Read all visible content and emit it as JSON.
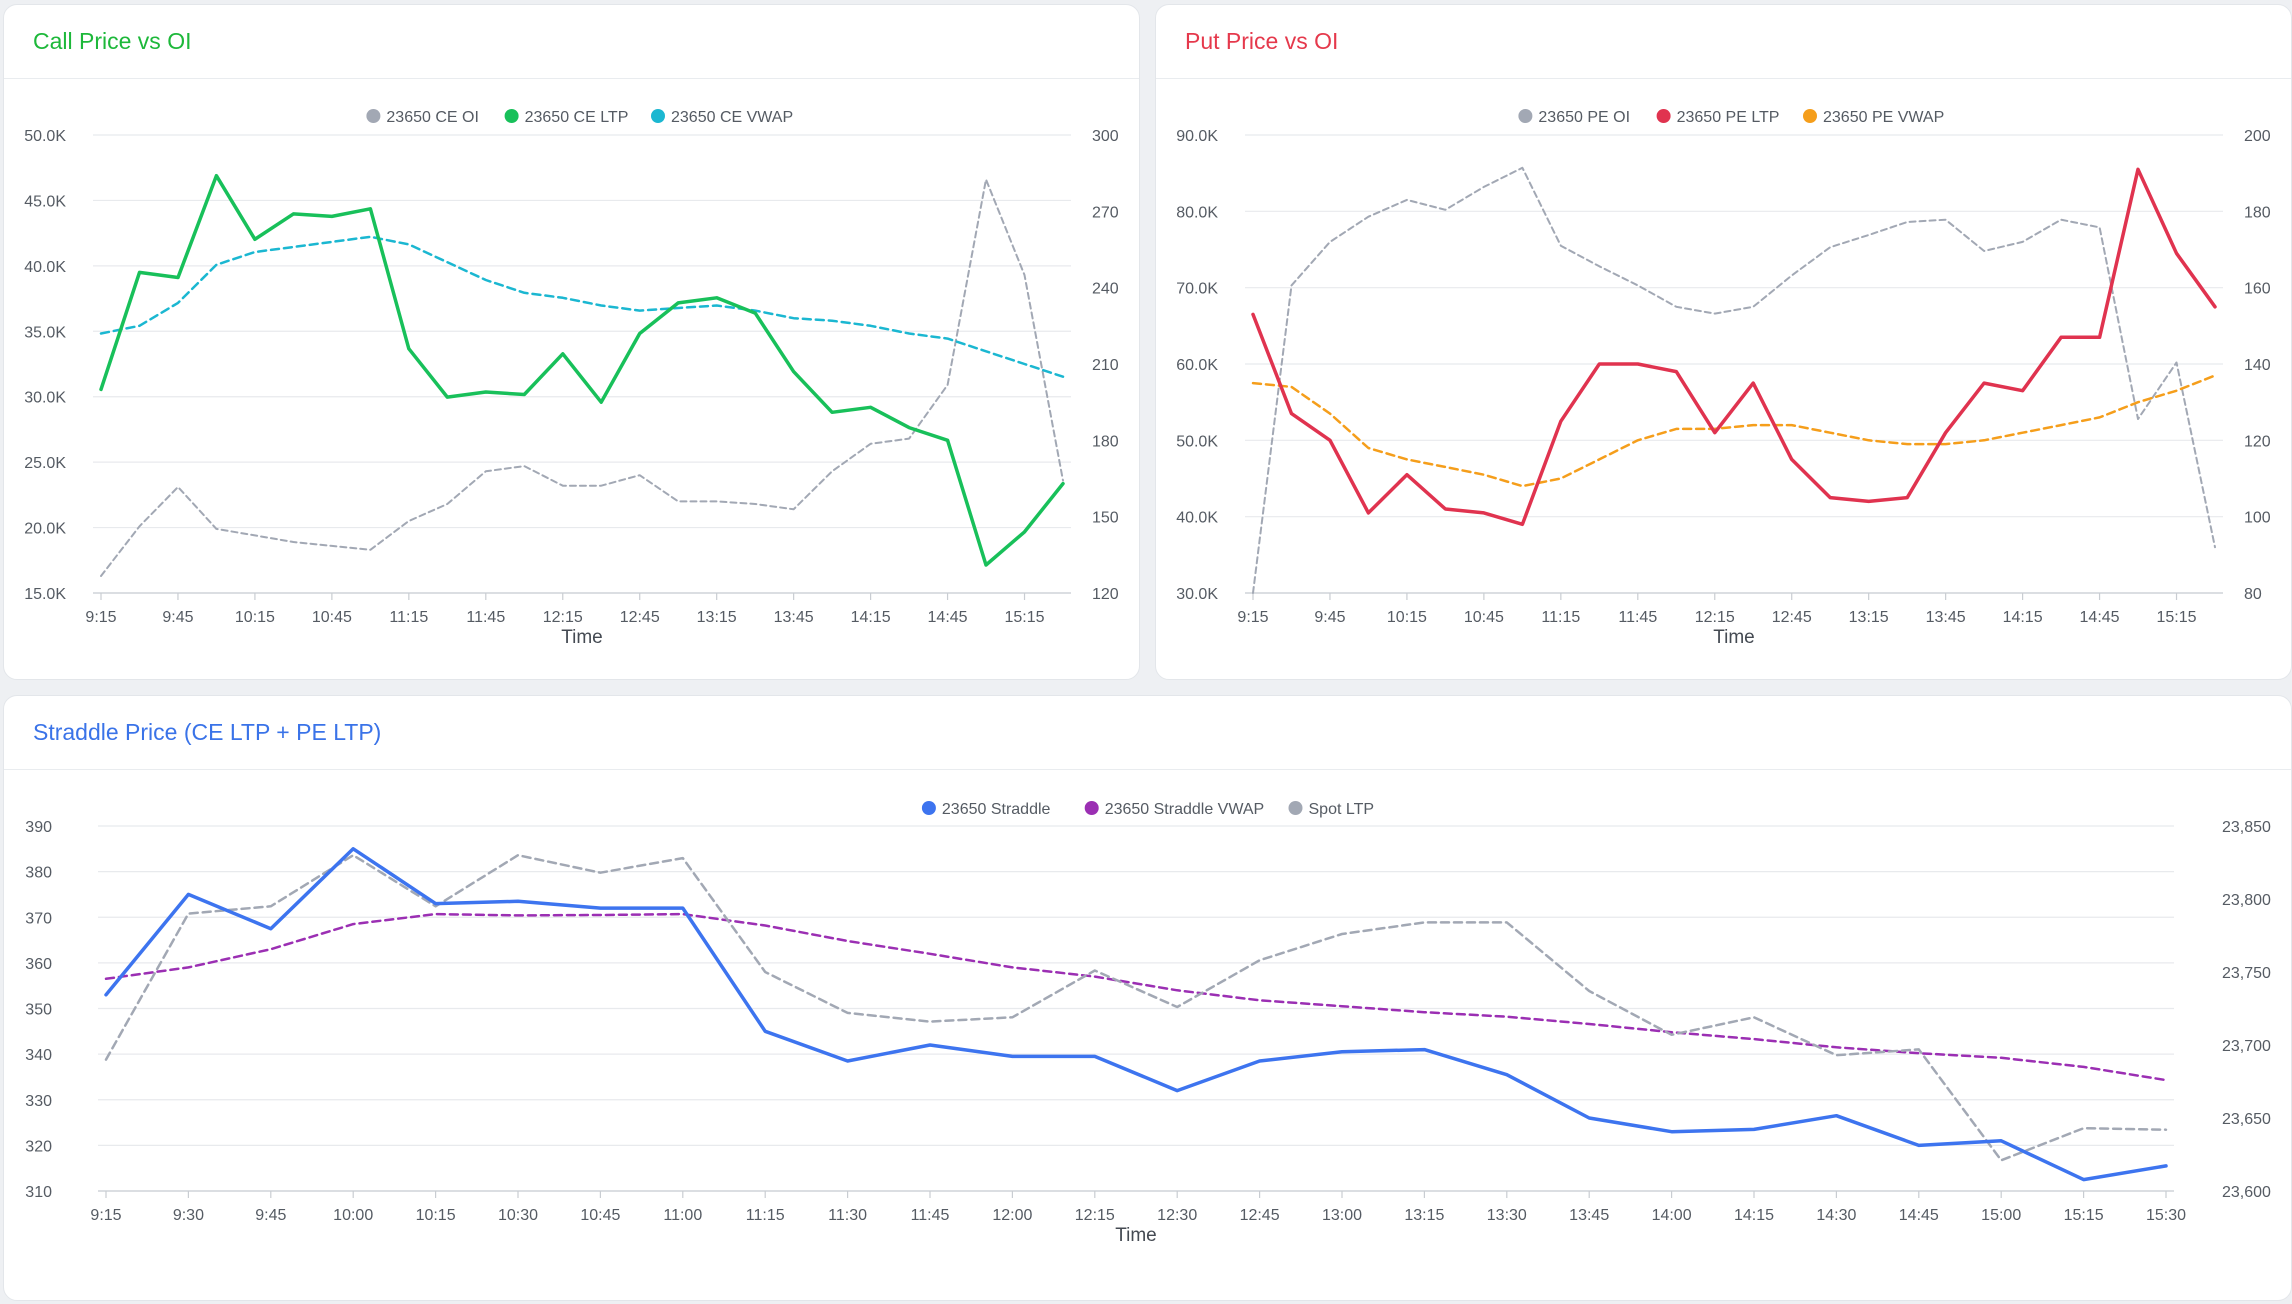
{
  "panels": [
    {
      "title": "Call Price vs OI",
      "title_color": "#1db83a",
      "chart_data": {
        "type": "line",
        "xlabel": "Time",
        "x_ticks": [
          "9:15",
          "9:45",
          "10:15",
          "10:45",
          "11:15",
          "11:45",
          "12:15",
          "12:45",
          "13:15",
          "13:45",
          "14:15",
          "14:45",
          "15:15"
        ],
        "y_left": {
          "ylim": [
            15000,
            50000
          ],
          "ticks": [
            15000,
            20000,
            25000,
            30000,
            35000,
            40000,
            45000,
            50000
          ],
          "tick_labels": [
            "15.0K",
            "20.0K",
            "25.0K",
            "30.0K",
            "35.0K",
            "40.0K",
            "45.0K",
            "50.0K"
          ]
        },
        "y_right": {
          "ylim": [
            120,
            300
          ],
          "ticks": [
            120,
            150,
            180,
            210,
            240,
            270,
            300
          ],
          "tick_labels": [
            "120",
            "150",
            "180",
            "210",
            "240",
            "270",
            "300"
          ]
        },
        "grid": true,
        "legend_placement": "top-center",
        "series": [
          {
            "name": "23650 CE OI",
            "axis": "left",
            "color": "#a2a8b4",
            "style": "dashed",
            "width": 2,
            "values": [
              16300,
              20100,
              23100,
              19900,
              19400,
              18900,
              18600,
              18300,
              20500,
              21800,
              24300,
              24700,
              23200,
              23200,
              24000,
              22000,
              22000,
              21800,
              21400,
              24300,
              26400,
              26800,
              30900,
              46600,
              39300,
              23600
            ]
          },
          {
            "name": "23650 CE LTP",
            "axis": "right",
            "color": "#18c05a",
            "style": "solid",
            "width": 3.5,
            "values": [
              200,
              246,
              244,
              284,
              259,
              269,
              268,
              271,
              216,
              197,
              199,
              198,
              214,
              195,
              222,
              234,
              236,
              230,
              207,
              191,
              193,
              185,
              180,
              131,
              144,
              163
            ]
          },
          {
            "name": "23650 CE VWAP",
            "axis": "right",
            "color": "#1bb7d1",
            "style": "dashed",
            "width": 2.5,
            "values": [
              222,
              225,
              234,
              249,
              254,
              256,
              258,
              260,
              257,
              250,
              243,
              238,
              236,
              233,
              231,
              232,
              233,
              231,
              228,
              227,
              225,
              222,
              220,
              215,
              210,
              205
            ]
          }
        ]
      }
    },
    {
      "title": "Put Price vs OI",
      "title_color": "#e5394c",
      "chart_data": {
        "type": "line",
        "xlabel": "Time",
        "x_ticks": [
          "9:15",
          "9:45",
          "10:15",
          "10:45",
          "11:15",
          "11:45",
          "12:15",
          "12:45",
          "13:15",
          "13:45",
          "14:15",
          "14:45",
          "15:15"
        ],
        "y_left": {
          "ylim": [
            30000,
            90000
          ],
          "ticks": [
            30000,
            40000,
            50000,
            60000,
            70000,
            80000,
            90000
          ],
          "tick_labels": [
            "30.0K",
            "40.0K",
            "50.0K",
            "60.0K",
            "70.0K",
            "80.0K",
            "90.0K"
          ]
        },
        "y_right": {
          "ylim": [
            80,
            200
          ],
          "ticks": [
            80,
            100,
            120,
            140,
            160,
            180,
            200
          ],
          "tick_labels": [
            "80",
            "100",
            "120",
            "140",
            "160",
            "180",
            "200"
          ]
        },
        "grid": true,
        "legend_placement": "top-center",
        "series": [
          {
            "name": "23650 PE OI",
            "axis": "left",
            "color": "#a2a8b4",
            "style": "dashed",
            "width": 2,
            "values": [
              30000,
              70300,
              76000,
              79300,
              81500,
              80200,
              83200,
              85700,
              75500,
              72800,
              70300,
              67500,
              66600,
              67500,
              71600,
              75300,
              76900,
              78600,
              78900,
              74800,
              76000,
              78900,
              77900,
              52800,
              60200,
              36000
            ]
          },
          {
            "name": "23650 PE LTP",
            "axis": "right",
            "color": "#e0334f",
            "style": "solid",
            "width": 3.5,
            "values": [
              153,
              127,
              120,
              101,
              111,
              102,
              101,
              98,
              125,
              140,
              140,
              138,
              122,
              135,
              115,
              105,
              104,
              105,
              122,
              135,
              133,
              147,
              147,
              191,
              169,
              155
            ]
          },
          {
            "name": "23650 PE VWAP",
            "axis": "right",
            "color": "#f59e1b",
            "style": "dashed",
            "width": 2.5,
            "values": [
              135,
              134,
              127,
              118,
              115,
              113,
              111,
              108,
              110,
              115,
              120,
              123,
              123,
              124,
              124,
              122,
              120,
              119,
              119,
              120,
              122,
              124,
              126,
              130,
              133,
              137
            ]
          }
        ]
      }
    },
    {
      "title": "Straddle Price (CE LTP + PE LTP)",
      "title_color": "#3a73e8",
      "chart_data": {
        "type": "line",
        "xlabel": "Time",
        "x_ticks": [
          "9:15",
          "9:30",
          "9:45",
          "10:00",
          "10:15",
          "10:30",
          "10:45",
          "11:00",
          "11:15",
          "11:30",
          "11:45",
          "12:00",
          "12:15",
          "12:30",
          "12:45",
          "13:00",
          "13:15",
          "13:30",
          "13:45",
          "14:00",
          "14:15",
          "14:30",
          "14:45",
          "15:00",
          "15:15",
          "15:30"
        ],
        "y_left": {
          "ylim": [
            310,
            390
          ],
          "ticks": [
            310,
            320,
            330,
            340,
            350,
            360,
            370,
            380,
            390
          ],
          "tick_labels": [
            "310",
            "320",
            "330",
            "340",
            "350",
            "360",
            "370",
            "380",
            "390"
          ]
        },
        "y_right": {
          "ylim": [
            23600,
            23850
          ],
          "ticks": [
            23600,
            23650,
            23700,
            23750,
            23800,
            23850
          ],
          "tick_labels": [
            "23,600",
            "23,650",
            "23,700",
            "23,750",
            "23,800",
            "23,850"
          ]
        },
        "grid": true,
        "legend_placement": "top-center",
        "series": [
          {
            "name": "23650 Straddle",
            "axis": "left",
            "color": "#3d74ef",
            "style": "solid",
            "width": 3.5,
            "values": [
              353,
              375,
              367.5,
              385,
              373,
              373.5,
              372,
              372,
              345,
              338.5,
              342,
              339.5,
              339.5,
              332,
              338.5,
              340.5,
              341,
              335.5,
              326,
              323,
              323.5,
              326.5,
              320,
              321,
              312.5,
              315.5
            ]
          },
          {
            "name": "23650 Straddle VWAP",
            "axis": "left",
            "color": "#9b2fb3",
            "style": "dashed",
            "width": 2.5,
            "values": [
              356.5,
              359,
              363,
              368.5,
              370.7,
              370.4,
              370.5,
              370.7,
              368.2,
              364.8,
              362,
              359,
              357,
              354,
              351.8,
              350.5,
              349.2,
              348.2,
              346.6,
              344.8,
              343.3,
              341.5,
              340.2,
              339.2,
              337.2,
              334.3
            ]
          },
          {
            "name": "Spot LTP",
            "axis": "right",
            "color": "#a2a8b4",
            "style": "dashed",
            "width": 2.5,
            "values": [
              23690,
              23790,
              23795,
              23830,
              23795,
              23830,
              23818,
              23828,
              23750,
              23722,
              23716,
              23719,
              23751,
              23726,
              23758,
              23776,
              23784,
              23784,
              23737,
              23707,
              23719,
              23693,
              23697,
              23621,
              23643,
              23642
            ]
          }
        ]
      }
    }
  ]
}
